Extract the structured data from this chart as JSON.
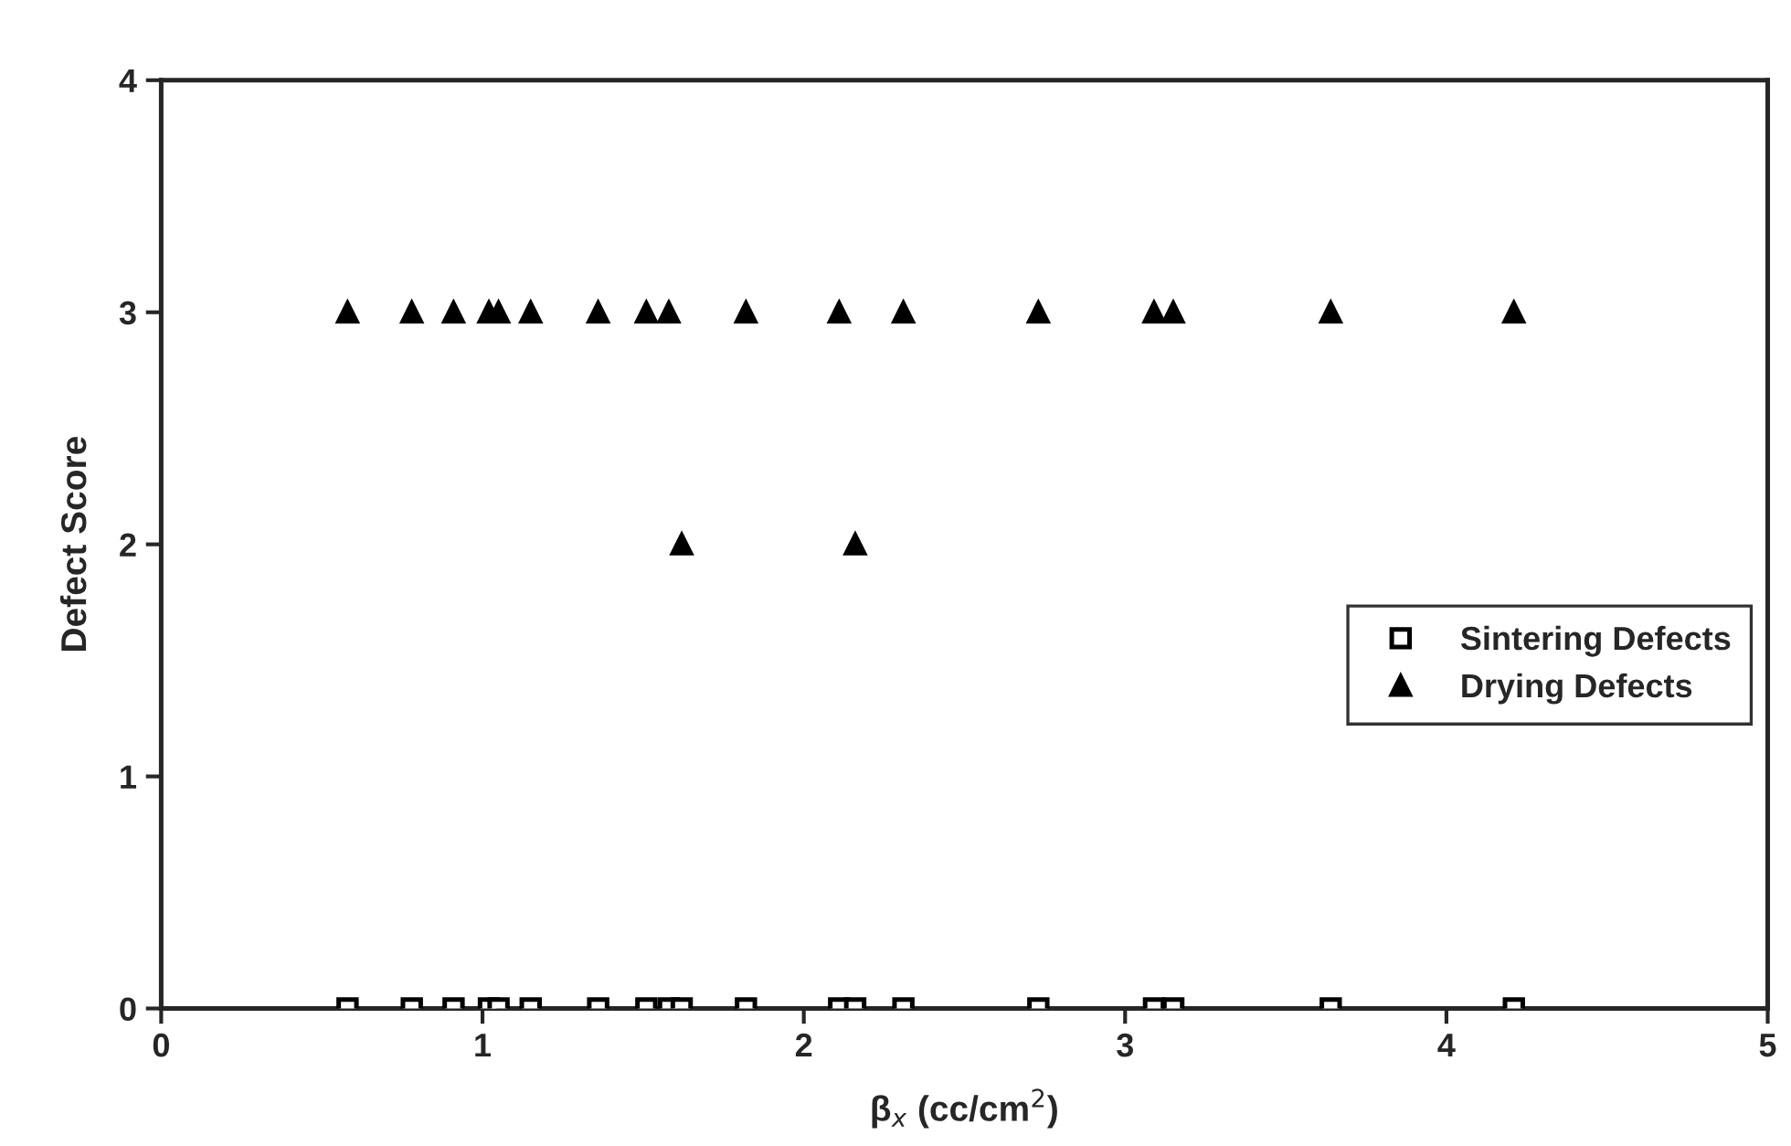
{
  "chart_data": {
    "type": "scatter",
    "xlabel": "β$_{x}$ (cc/cm$^{2}$)",
    "ylabel": "Defect Score",
    "xlim": [
      0,
      5
    ],
    "xticks": [
      0,
      1,
      2,
      3,
      4,
      5
    ],
    "ylim": [
      0,
      4
    ],
    "yticks": [
      0,
      1,
      2,
      3,
      4
    ],
    "grid": false,
    "legend": "right",
    "series": [
      {
        "name": "Sintering Defects",
        "color": "#000000",
        "marker": "square",
        "x": [
          0.58,
          0.78,
          0.91,
          1.02,
          1.05,
          1.15,
          1.36,
          1.51,
          1.58,
          1.62,
          1.82,
          2.11,
          2.16,
          2.31,
          2.73,
          3.09,
          3.15,
          3.64,
          4.21
        ],
        "values": [
          0,
          0,
          0,
          0,
          0,
          0,
          0,
          0,
          0,
          0,
          0,
          0,
          0,
          0,
          0,
          0,
          0,
          0,
          0
        ]
      },
      {
        "name": "Drying Defects",
        "color": "#000000",
        "marker": "triangle",
        "x": [
          0.58,
          0.78,
          0.91,
          1.02,
          1.05,
          1.15,
          1.36,
          1.51,
          1.58,
          1.62,
          1.82,
          2.11,
          2.16,
          2.31,
          2.73,
          3.09,
          3.15,
          3.64,
          4.21
        ],
        "values": [
          3,
          3,
          3,
          3,
          3,
          3,
          3,
          3,
          3,
          2,
          3,
          3,
          2,
          3,
          3,
          3,
          3,
          3,
          3
        ]
      }
    ]
  }
}
